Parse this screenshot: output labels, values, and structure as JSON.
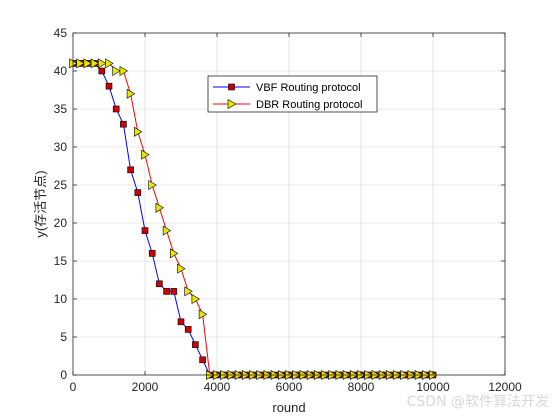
{
  "chart_data": {
    "type": "line",
    "xlabel": "round",
    "ylabel": "y(存活节点)",
    "xlim": [
      0,
      12000
    ],
    "ylim": [
      0,
      45
    ],
    "xticks": [
      0,
      2000,
      4000,
      6000,
      8000,
      10000,
      12000
    ],
    "yticks": [
      0,
      5,
      10,
      15,
      20,
      25,
      30,
      35,
      40,
      45
    ],
    "grid": true,
    "legend_position": "upper-center",
    "series": [
      {
        "name": "VBF Routing protocol",
        "color": "#0000ff",
        "marker": "square",
        "marker_color": "#cc0000",
        "x": [
          0,
          200,
          400,
          600,
          800,
          1000,
          1200,
          1400,
          1600,
          1800,
          2000,
          2200,
          2400,
          2600,
          2800,
          3000,
          3200,
          3400,
          3600,
          3800,
          4000,
          4200,
          4400,
          4600,
          4800,
          5000,
          5200,
          5400,
          5600,
          5800,
          6000,
          6200,
          6400,
          6600,
          6800,
          7000,
          7200,
          7400,
          7600,
          7800,
          8000,
          8200,
          8400,
          8600,
          8800,
          9000,
          9200,
          9400,
          9600,
          9800,
          10000
        ],
        "y": [
          41,
          41,
          41,
          41,
          40,
          38,
          35,
          33,
          27,
          24,
          19,
          16,
          12,
          11,
          11,
          7,
          6,
          4,
          2,
          0,
          0,
          0,
          0,
          0,
          0,
          0,
          0,
          0,
          0,
          0,
          0,
          0,
          0,
          0,
          0,
          0,
          0,
          0,
          0,
          0,
          0,
          0,
          0,
          0,
          0,
          0,
          0,
          0,
          0,
          0,
          0
        ]
      },
      {
        "name": "DBR Routing protocol",
        "color": "#ff0000",
        "marker": "triangle-right",
        "marker_color": "#e6e600",
        "x": [
          0,
          200,
          400,
          600,
          800,
          1000,
          1200,
          1400,
          1600,
          1800,
          2000,
          2200,
          2400,
          2600,
          2800,
          3000,
          3200,
          3400,
          3600,
          3800,
          4000,
          4200,
          4400,
          4600,
          4800,
          5000,
          5200,
          5400,
          5600,
          5800,
          6000,
          6200,
          6400,
          6600,
          6800,
          7000,
          7200,
          7400,
          7600,
          7800,
          8000,
          8200,
          8400,
          8600,
          8800,
          9000,
          9200,
          9400,
          9600,
          9800,
          10000
        ],
        "y": [
          41,
          41,
          41,
          41,
          41,
          41,
          40,
          40,
          37,
          32,
          29,
          25,
          22,
          19,
          16,
          14,
          11,
          10,
          8,
          0,
          0,
          0,
          0,
          0,
          0,
          0,
          0,
          0,
          0,
          0,
          0,
          0,
          0,
          0,
          0,
          0,
          0,
          0,
          0,
          0,
          0,
          0,
          0,
          0,
          0,
          0,
          0,
          0,
          0,
          0,
          0
        ]
      }
    ]
  },
  "watermark": "CSDN @软件算法开发"
}
